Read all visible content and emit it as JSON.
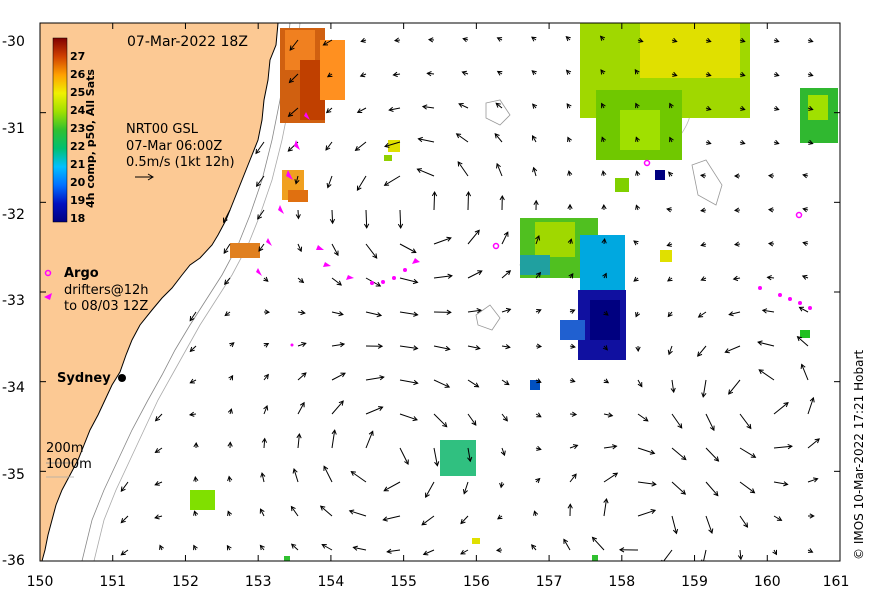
{
  "map": {
    "timestamp": "07-Mar-2022 18Z",
    "colorbar_title": "4h comp, p50, All Sats",
    "colorbar_ticks": [
      "27",
      "26",
      "25",
      "24",
      "23",
      "22",
      "21",
      "20",
      "19",
      "18"
    ],
    "current_product": "NRT00 GSL",
    "current_time": "07-Mar 06:00Z",
    "current_scale": "0.5m/s (1kt 12h)",
    "argo_label": "Argo",
    "drifters_line1": "drifters@12h",
    "drifters_line2": "to 08/03 12Z",
    "city_label": "Sydney",
    "contour_200": "200m",
    "contour_1000": "1000m",
    "credit": "© IMOS 10-Mar-2022 17:21 Hobart",
    "x_ticks": [
      "150",
      "151",
      "152",
      "153",
      "154",
      "155",
      "156",
      "157",
      "158",
      "159",
      "160",
      "161"
    ],
    "y_ticks": [
      "-30",
      "-31",
      "-32",
      "-33",
      "-34",
      "-35",
      "-36"
    ],
    "x_range": [
      150,
      161
    ],
    "y_range": [
      -36,
      -30
    ],
    "colors": {
      "land": "#fcc994",
      "argo": "#ff00ff",
      "drifter": "#ff00ff",
      "arrow": "#000000"
    }
  }
}
